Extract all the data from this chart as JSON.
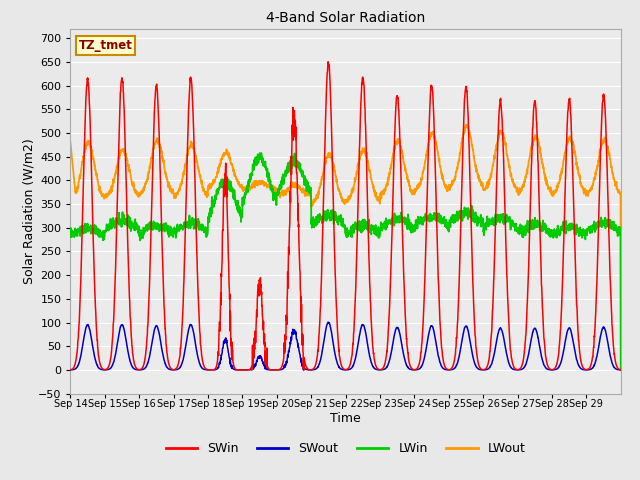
{
  "title": "4-Band Solar Radiation",
  "xlabel": "Time",
  "ylabel": "Solar Radiation (W/m2)",
  "ylim": [
    -50,
    720
  ],
  "annotation_label": "TZ_tmet",
  "annotation_box_color": "#ffffcc",
  "annotation_box_edgecolor": "#cc8800",
  "annotation_text_color": "#8B0000",
  "colors": {
    "SWin": "#ff0000",
    "SWout": "#0000cc",
    "LWin": "#00cc00",
    "LWout": "#ff9900"
  },
  "bg_color": "#e8e8e8",
  "plot_bg_color": "#ebebeb",
  "grid_color": "#ffffff",
  "legend_labels": [
    "SWin",
    "SWout",
    "LWin",
    "LWout"
  ],
  "tick_dates": [
    "Sep 14",
    "Sep 15",
    "Sep 16",
    "Sep 17",
    "Sep 18",
    "Sep 19",
    "Sep 20",
    "Sep 21",
    "Sep 22",
    "Sep 23",
    "Sep 24",
    "Sep 25",
    "Sep 26",
    "Sep 27",
    "Sep 28",
    "Sep 29"
  ],
  "n_days": 16,
  "samples_per_day": 144
}
